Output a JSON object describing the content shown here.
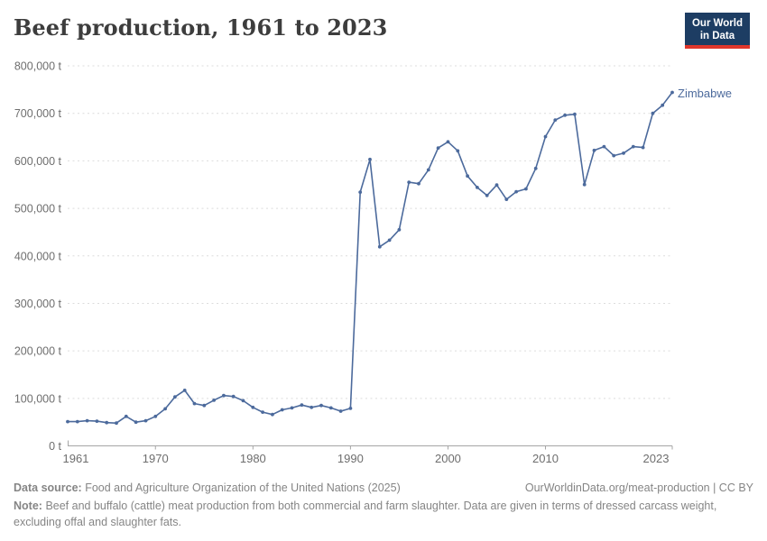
{
  "header": {
    "title": "Beef production, 1961 to 2023"
  },
  "logo": {
    "line1": "Our World",
    "line2": "in Data",
    "bg_color": "#1d3d63",
    "bar_color": "#e0362b"
  },
  "chart_data": {
    "type": "line",
    "title": "Beef production, 1961 to 2023",
    "unit": "t",
    "xlabel": "",
    "ylabel": "",
    "xlim": [
      1961,
      2023
    ],
    "ylim": [
      0,
      800000
    ],
    "grid": "horizontal dashed",
    "legend_position": "end-of-line label",
    "x_ticks": [
      1961,
      1970,
      1980,
      1990,
      2000,
      2010,
      2023
    ],
    "y_ticks": [
      {
        "value": 0,
        "label": "0 t"
      },
      {
        "value": 100000,
        "label": "100,000 t"
      },
      {
        "value": 200000,
        "label": "200,000 t"
      },
      {
        "value": 300000,
        "label": "300,000 t"
      },
      {
        "value": 400000,
        "label": "400,000 t"
      },
      {
        "value": 500000,
        "label": "500,000 t"
      },
      {
        "value": 600000,
        "label": "600,000 t"
      },
      {
        "value": 700000,
        "label": "700,000 t"
      },
      {
        "value": 800000,
        "label": "800,000 t"
      }
    ],
    "series": [
      {
        "name": "Zimbabwe",
        "color": "#4C6A9C",
        "x": [
          1961,
          1962,
          1963,
          1964,
          1965,
          1966,
          1967,
          1968,
          1969,
          1970,
          1971,
          1972,
          1973,
          1974,
          1975,
          1976,
          1977,
          1978,
          1979,
          1980,
          1981,
          1982,
          1983,
          1984,
          1985,
          1986,
          1987,
          1988,
          1989,
          1990,
          1991,
          1992,
          1993,
          1994,
          1995,
          1996,
          1997,
          1998,
          1999,
          2000,
          2001,
          2002,
          2003,
          2004,
          2005,
          2006,
          2007,
          2008,
          2009,
          2010,
          2011,
          2012,
          2013,
          2014,
          2015,
          2016,
          2017,
          2018,
          2019,
          2020,
          2021,
          2022,
          2023
        ],
        "values": [
          51000,
          51000,
          53000,
          52000,
          49000,
          48000,
          62000,
          50000,
          53000,
          62000,
          78000,
          103000,
          117000,
          89000,
          85000,
          96000,
          106000,
          104000,
          95000,
          81000,
          71000,
          66000,
          76000,
          80000,
          86000,
          81000,
          85000,
          80000,
          73000,
          79000,
          534000,
          603000,
          419000,
          433000,
          455000,
          555000,
          552000,
          581000,
          627000,
          640000,
          621000,
          568000,
          544000,
          527000,
          549000,
          519000,
          535000,
          541000,
          584000,
          651000,
          686000,
          696000,
          698000,
          550000,
          622000,
          630000,
          611000,
          616000,
          630000,
          628000,
          700000,
          717000,
          744000
        ]
      }
    ]
  },
  "footer": {
    "source_label": "Data source:",
    "source_text": "Food and Agriculture Organization of the United Nations (2025)",
    "link_text": "OurWorldinData.org/meat-production | CC BY",
    "note_label": "Note:",
    "note_text": "Beef and buffalo (cattle) meat production from both commercial and farm slaughter. Data are given in terms of dressed carcass weight, excluding offal and slaughter fats."
  }
}
